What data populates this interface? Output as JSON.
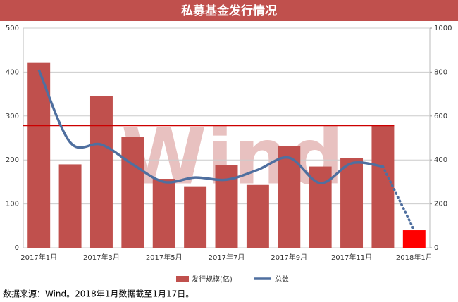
{
  "chart_data": {
    "type": "bar-line",
    "title": "私募基金发行情况",
    "categories": [
      "2017年1月",
      null,
      "2017年3月",
      null,
      "2017年5月",
      null,
      "2017年7月",
      null,
      "2017年9月",
      null,
      "2017年11月",
      null,
      "2018年1月"
    ],
    "series": [
      {
        "name": "发行规模(亿)",
        "color": "#c0504d",
        "colors": [
          "#c0504d",
          "#c0504d",
          "#c0504d",
          "#c0504d",
          "#c0504d",
          "#c0504d",
          "#c0504d",
          "#c0504d",
          "#c0504d",
          "#c0504d",
          "#c0504d",
          "#c0504d",
          "#ff0000"
        ],
        "values": [
          422,
          190,
          345,
          252,
          157,
          140,
          188,
          143,
          232,
          185,
          205,
          278,
          40
        ]
      },
      {
        "name": "总数",
        "color": "#4f6f9f",
        "axis": "y2",
        "values": [
          810,
          480,
          470,
          380,
          300,
          320,
          310,
          355,
          410,
          295,
          385,
          370,
          80
        ]
      }
    ],
    "ylim": [
      0,
      500
    ],
    "yticks": [
      0,
      100,
      200,
      300,
      400,
      500
    ],
    "y2lim": [
      0,
      1000
    ],
    "y2ticks": [
      0,
      200,
      400,
      600,
      800,
      1000
    ],
    "reference_line": 278,
    "reference_color": "#cc0000",
    "grid": true,
    "watermark": "Wind",
    "footnote": "数据来源：Wind。2018年1月数据截至1月17日。"
  }
}
